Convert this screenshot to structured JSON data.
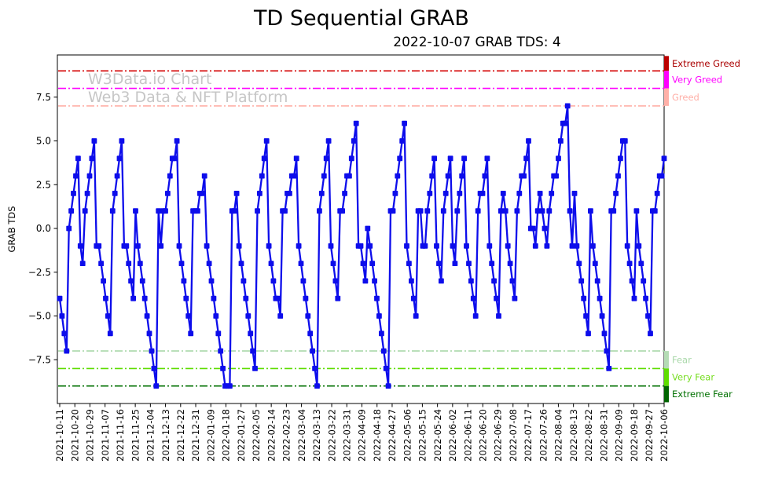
{
  "title": "TD Sequential GRAB",
  "subtitle": "2022-10-07 GRAB TDS: 4",
  "watermark": {
    "line1": "W3Data.io Chart",
    "line2": "Web3 Data & NFT Platform"
  },
  "y_axis": {
    "label": "GRAB TDS",
    "ticks": [
      {
        "label": "7.5",
        "value": 7.5
      },
      {
        "label": "5.0",
        "value": 5.0
      },
      {
        "label": "2.5",
        "value": 2.5
      },
      {
        "label": "0.0",
        "value": 0.0
      },
      {
        "label": "−2.5",
        "value": -2.5
      },
      {
        "label": "−5.0",
        "value": -5.0
      },
      {
        "label": "−7.5",
        "value": -7.5
      }
    ]
  },
  "x_axis": {
    "tick_labels": [
      "2021-10-11",
      "2021-10-20",
      "2021-10-29",
      "2021-11-07",
      "2021-11-16",
      "2021-11-25",
      "2021-12-04",
      "2021-12-13",
      "2021-12-22",
      "2021-12-31",
      "2022-01-09",
      "2022-01-18",
      "2022-01-27",
      "2022-02-05",
      "2022-02-14",
      "2022-02-23",
      "2022-03-04",
      "2022-03-13",
      "2022-03-22",
      "2022-03-31",
      "2022-04-09",
      "2022-04-18",
      "2022-04-27",
      "2022-05-06",
      "2022-05-15",
      "2022-05-24",
      "2022-06-02",
      "2022-06-11",
      "2022-06-20",
      "2022-06-29",
      "2022-07-08",
      "2022-07-17",
      "2022-07-26",
      "2022-08-04",
      "2022-08-13",
      "2022-08-22",
      "2022-08-31",
      "2022-09-09",
      "2022-09-18",
      "2022-09-27",
      "2022-10-06"
    ]
  },
  "thresholds": [
    {
      "name": "extreme-greed",
      "label": "Extreme Greed",
      "value": 9,
      "line_color": "#d40000",
      "text_color": "#aa0000",
      "bar_color": "#bb0000",
      "bar_span": [
        9.85,
        9
      ]
    },
    {
      "name": "very-greed",
      "label": "Very Greed",
      "value": 8,
      "line_color": "#ff00ff",
      "text_color": "#ff00ff",
      "bar_color": "#ff00ff",
      "bar_span": [
        9,
        8
      ]
    },
    {
      "name": "greed",
      "label": "Greed",
      "value": 7,
      "line_color": "#ffb0a8",
      "text_color": "#ffb0a8",
      "bar_color": "#ffb0a8",
      "bar_span": [
        8,
        7
      ]
    },
    {
      "name": "fear",
      "label": "Fear",
      "value": -7,
      "line_color": "#a9d8a9",
      "text_color": "#a9d8a9",
      "bar_color": "#b4dcb4",
      "bar_span": [
        -7,
        -8
      ]
    },
    {
      "name": "very-fear",
      "label": "Very Fear",
      "value": -8,
      "line_color": "#5fdd00",
      "text_color": "#77dd22",
      "bar_color": "#5fdd00",
      "bar_span": [
        -8,
        -9
      ]
    },
    {
      "name": "extreme-fear",
      "label": "Extreme Fear",
      "value": -9,
      "line_color": "#007000",
      "text_color": "#007000",
      "bar_color": "#006400",
      "bar_span": [
        -9,
        -9.93
      ]
    }
  ],
  "chart_data": {
    "type": "line",
    "series_name": "GRAB TDS daily value",
    "x_start": "2021-10-11",
    "x_end": "2022-10-06",
    "line_color": "#0d0deb",
    "marker": "square",
    "ylim": [
      -9.93,
      9.85
    ],
    "values": [
      -4,
      -5,
      -6,
      -7,
      0,
      1,
      2,
      3,
      4,
      -1,
      -2,
      1,
      2,
      3,
      4,
      5,
      -1,
      -1,
      -2,
      -3,
      -4,
      -5,
      -6,
      1,
      2,
      3,
      4,
      5,
      -1,
      -1,
      -2,
      -3,
      -4,
      1,
      -1,
      -2,
      -3,
      -4,
      -5,
      -6,
      -7,
      -8,
      -9,
      1,
      -1,
      1,
      1,
      2,
      3,
      4,
      4,
      5,
      -1,
      -2,
      -3,
      -4,
      -5,
      -6,
      1,
      1,
      1,
      2,
      2,
      3,
      -1,
      -2,
      -3,
      -4,
      -5,
      -6,
      -7,
      -8,
      -9,
      -9,
      -9,
      1,
      1,
      2,
      -1,
      -2,
      -3,
      -4,
      -5,
      -6,
      -7,
      -8,
      1,
      2,
      3,
      4,
      5,
      -1,
      -2,
      -3,
      -4,
      -4,
      -5,
      1,
      1,
      2,
      2,
      3,
      3,
      4,
      -1,
      -2,
      -3,
      -4,
      -5,
      -6,
      -7,
      -8,
      -9,
      1,
      2,
      3,
      4,
      5,
      -1,
      -2,
      -3,
      -4,
      1,
      1,
      2,
      3,
      3,
      4,
      5,
      6,
      -1,
      -1,
      -2,
      -3,
      0,
      -1,
      -2,
      -3,
      -4,
      -5,
      -6,
      -7,
      -8,
      -9,
      1,
      1,
      2,
      3,
      4,
      5,
      6,
      -1,
      -2,
      -3,
      -4,
      -5,
      1,
      1,
      -1,
      -1,
      1,
      2,
      3,
      4,
      -1,
      -2,
      -3,
      1,
      2,
      3,
      4,
      -1,
      -2,
      1,
      2,
      3,
      4,
      -1,
      -2,
      -3,
      -4,
      -5,
      1,
      2,
      2,
      3,
      4,
      -1,
      -2,
      -3,
      -4,
      -5,
      1,
      2,
      1,
      -1,
      -2,
      -3,
      -4,
      1,
      2,
      3,
      3,
      4,
      5,
      0,
      0,
      -1,
      1,
      2,
      1,
      0,
      -1,
      1,
      2,
      3,
      3,
      4,
      5,
      6,
      6,
      7,
      1,
      -1,
      2,
      -1,
      -2,
      -3,
      -4,
      -5,
      -6,
      1,
      -1,
      -2,
      -3,
      -4,
      -5,
      -6,
      -7,
      -8,
      1,
      1,
      2,
      3,
      4,
      5,
      5,
      -1,
      -2,
      -3,
      -4,
      1,
      -1,
      -2,
      -3,
      -4,
      -5,
      -6,
      1,
      1,
      2,
      3,
      3,
      4
    ]
  }
}
